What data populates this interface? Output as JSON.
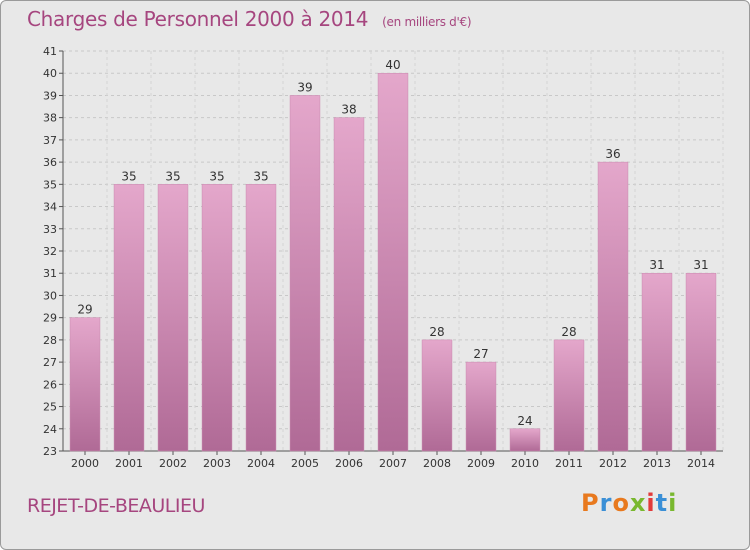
{
  "header": {
    "title": "Charges de Personnel 2000 à 2014",
    "subtitle": "(en milliers d'€)"
  },
  "footer": {
    "commune": "REJET-DE-BEAULIEU",
    "logo": "Proxiti",
    "logo_colors": [
      "#e8791e",
      "#3a8fd6",
      "#e8791e",
      "#79b82f",
      "#e23a3a",
      "#3a8fd6",
      "#79b82f"
    ]
  },
  "chart_data": {
    "type": "bar",
    "title": "Charges de Personnel 2000 à 2014",
    "subtitle": "(en milliers d'€)",
    "categories": [
      "2000",
      "2001",
      "2002",
      "2003",
      "2004",
      "2005",
      "2006",
      "2007",
      "2008",
      "2009",
      "2010",
      "2011",
      "2012",
      "2013",
      "2014"
    ],
    "values": [
      29,
      35,
      35,
      35,
      35,
      39,
      38,
      40,
      28,
      27,
      24,
      28,
      36,
      31,
      31
    ],
    "ylim": [
      23,
      41
    ],
    "yticks": [
      23,
      24,
      25,
      26,
      27,
      28,
      29,
      30,
      31,
      32,
      33,
      34,
      35,
      36,
      37,
      38,
      39,
      40,
      41
    ],
    "grid": true,
    "bar_color_top": "#e4a7cb",
    "bar_color_bottom": "#b06a96"
  }
}
